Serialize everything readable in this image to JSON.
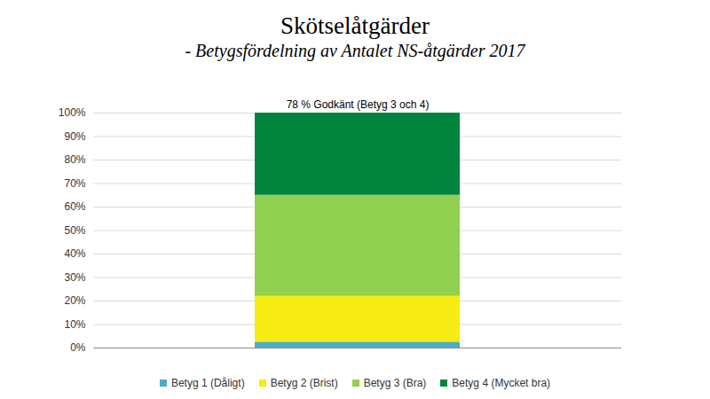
{
  "chart_data": {
    "type": "bar",
    "title": "Skötselåtgärder",
    "subtitle": "- Betygsfördelning av Antalet NS-åtgärder 2017",
    "annotation": "78 % Godkänt (Betyg 3 och 4)",
    "categories": [
      null
    ],
    "series": [
      {
        "name": "Betyg 1 (Dåligt)",
        "color": "#4bacc6",
        "values": [
          2.5
        ]
      },
      {
        "name": "Betyg 2 (Brist)",
        "color": "#f7ec13",
        "values": [
          19.5
        ]
      },
      {
        "name": "Betyg 3 (Bra)",
        "color": "#92d050",
        "values": [
          43
        ]
      },
      {
        "name": "Betyg 4 (Mycket bra)",
        "color": "#00843d",
        "values": [
          35
        ]
      }
    ],
    "ylim": [
      0,
      100
    ],
    "yticks": [
      {
        "value": 0,
        "label": "0%"
      },
      {
        "value": 10,
        "label": "10%"
      },
      {
        "value": 20,
        "label": "20%"
      },
      {
        "value": 30,
        "label": "30%"
      },
      {
        "value": 40,
        "label": "40%"
      },
      {
        "value": 50,
        "label": "50%"
      },
      {
        "value": 60,
        "label": "60%"
      },
      {
        "value": 70,
        "label": "70%"
      },
      {
        "value": 80,
        "label": "80%"
      },
      {
        "value": 90,
        "label": "90%"
      },
      {
        "value": 100,
        "label": "100%"
      }
    ],
    "grid": true,
    "stacked": true,
    "legend": "bottom"
  }
}
